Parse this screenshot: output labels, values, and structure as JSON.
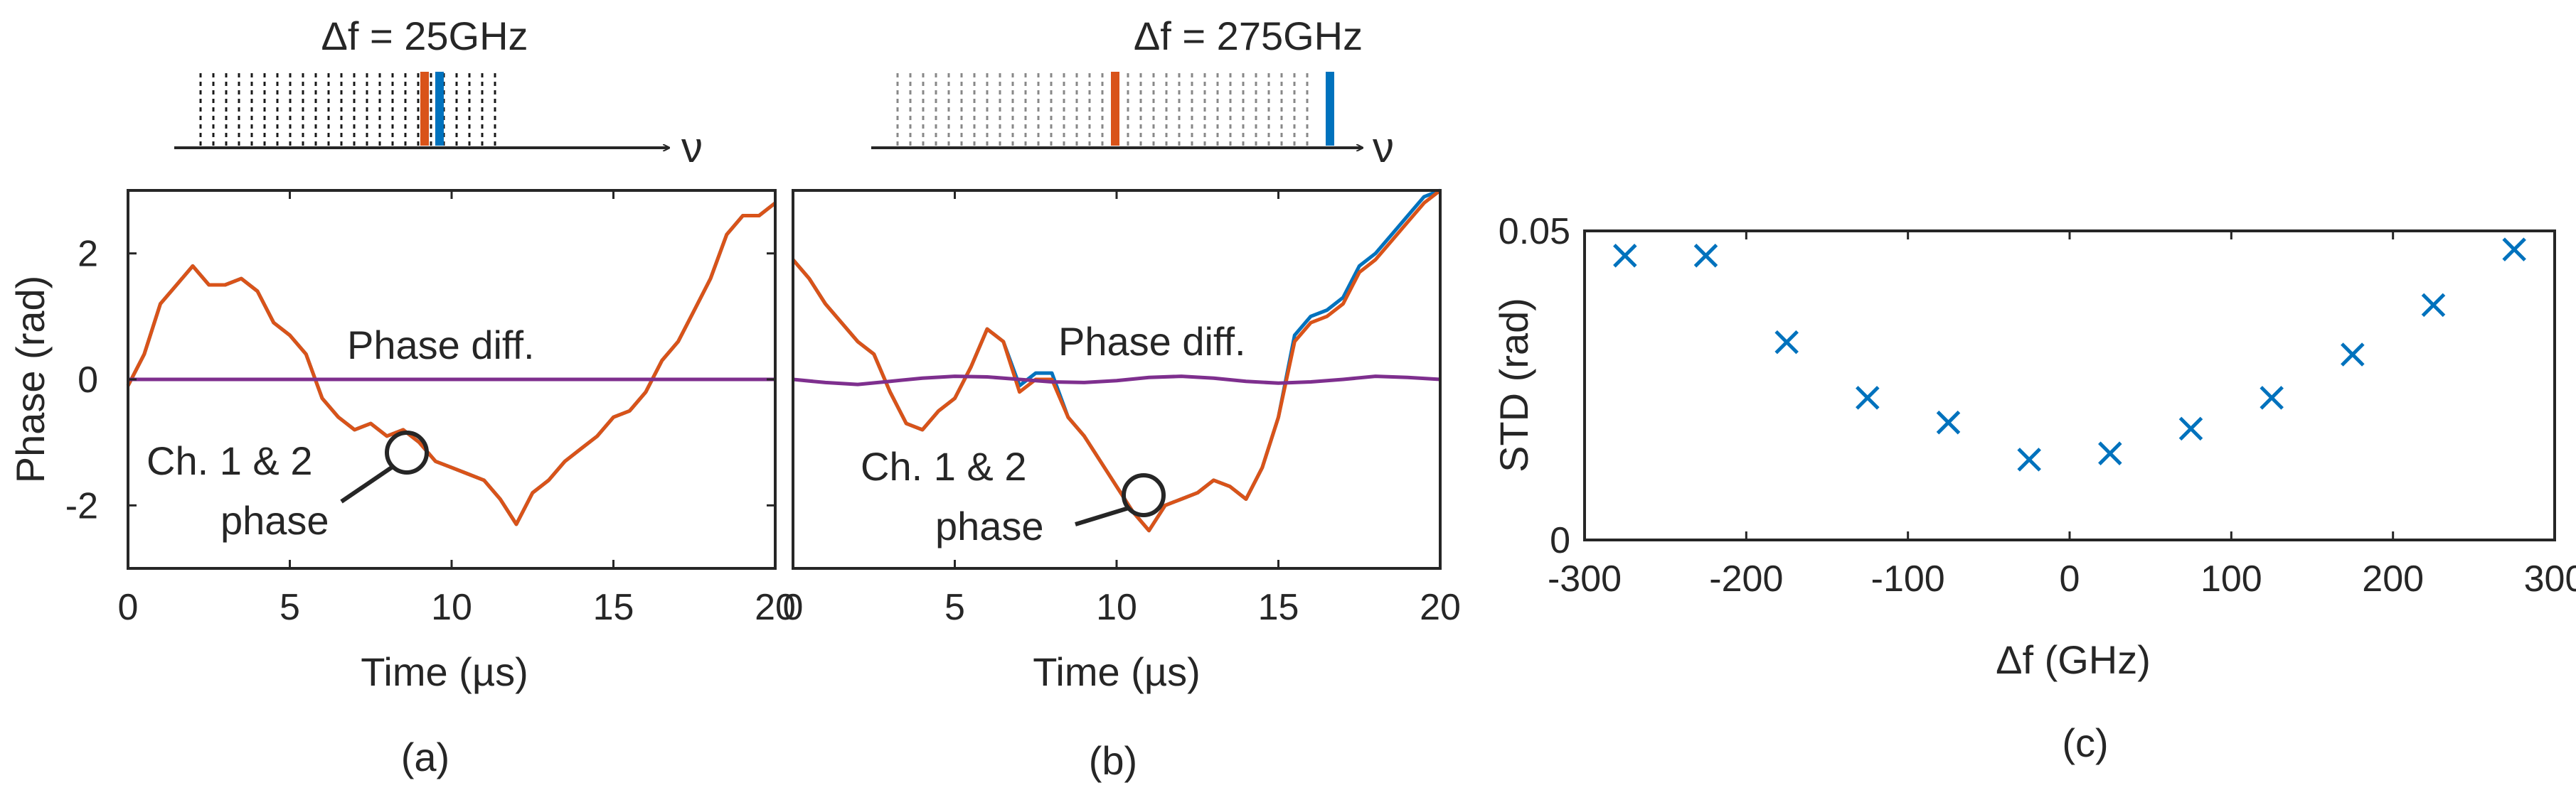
{
  "colors": {
    "orange": "#D95319",
    "blue": "#0072BD",
    "purple": "#7E2F8E",
    "axis": "#262626"
  },
  "chart_data": [
    {
      "id": "a",
      "type": "line",
      "panel_label": "(a)",
      "xlabel": "Time (µs)",
      "ylabel": "Phase (rad)",
      "xlim": [
        0,
        20
      ],
      "ylim": [
        -3,
        3
      ],
      "xticks": [
        0,
        5,
        10,
        15,
        20
      ],
      "xtick_labels": [
        "0",
        "5",
        "10",
        "15",
        "20"
      ],
      "yticks": [
        2,
        0,
        -2
      ],
      "ytick_labels": [
        "2",
        "0",
        "-2"
      ],
      "inset_title": "Δf = 25GHz",
      "inset_axis_symbol": "ν",
      "annotations": {
        "phase_diff": "Phase diff.",
        "channels_line1": "Ch. 1 & 2",
        "channels_line2": "phase"
      },
      "series": [
        {
          "name": "Ch. 1 phase",
          "color": "#0072BD",
          "x": [
            0,
            0.5,
            1,
            1.5,
            2,
            2.5,
            3,
            3.5,
            4,
            4.5,
            5,
            5.5,
            6,
            6.5,
            7,
            7.5,
            8,
            8.5,
            9,
            9.5,
            10,
            10.5,
            11,
            11.5,
            12,
            12.5,
            13,
            13.5,
            14,
            14.5,
            15,
            15.5,
            16,
            16.5,
            17,
            17.5,
            18,
            18.5,
            19,
            19.5,
            20
          ],
          "y": [
            -0.1,
            0.4,
            1.2,
            1.5,
            1.8,
            1.5,
            1.5,
            1.6,
            1.4,
            0.9,
            0.7,
            0.4,
            -0.3,
            -0.6,
            -0.8,
            -0.7,
            -0.9,
            -0.8,
            -1.0,
            -1.3,
            -1.4,
            -1.5,
            -1.6,
            -1.9,
            -2.3,
            -1.8,
            -1.6,
            -1.3,
            -1.1,
            -0.9,
            -0.6,
            -0.5,
            -0.2,
            0.3,
            0.6,
            1.1,
            1.6,
            2.3,
            2.6,
            2.6,
            2.8
          ]
        },
        {
          "name": "Ch. 2 phase",
          "color": "#D95319",
          "x": [
            0,
            0.5,
            1,
            1.5,
            2,
            2.5,
            3,
            3.5,
            4,
            4.5,
            5,
            5.5,
            6,
            6.5,
            7,
            7.5,
            8,
            8.5,
            9,
            9.5,
            10,
            10.5,
            11,
            11.5,
            12,
            12.5,
            13,
            13.5,
            14,
            14.5,
            15,
            15.5,
            16,
            16.5,
            17,
            17.5,
            18,
            18.5,
            19,
            19.5,
            20
          ],
          "y": [
            -0.1,
            0.4,
            1.2,
            1.5,
            1.8,
            1.5,
            1.5,
            1.6,
            1.4,
            0.9,
            0.7,
            0.4,
            -0.3,
            -0.6,
            -0.8,
            -0.7,
            -0.9,
            -0.8,
            -1.0,
            -1.3,
            -1.4,
            -1.5,
            -1.6,
            -1.9,
            -2.3,
            -1.8,
            -1.6,
            -1.3,
            -1.1,
            -0.9,
            -0.6,
            -0.5,
            -0.2,
            0.3,
            0.6,
            1.1,
            1.6,
            2.3,
            2.6,
            2.6,
            2.8
          ]
        },
        {
          "name": "Phase diff.",
          "color": "#7E2F8E",
          "x": [
            0,
            5,
            10,
            15,
            20
          ],
          "y": [
            0,
            0,
            0,
            0,
            0
          ]
        }
      ]
    },
    {
      "id": "b",
      "type": "line",
      "panel_label": "(b)",
      "xlabel": "Time (µs)",
      "ylabel": "",
      "xlim": [
        0,
        20
      ],
      "ylim": [
        -3,
        3
      ],
      "xticks": [
        0,
        5,
        10,
        15,
        20
      ],
      "xtick_labels": [
        "0",
        "5",
        "10",
        "15",
        "20"
      ],
      "inset_title": "Δf = 275GHz",
      "inset_axis_symbol": "ν",
      "annotations": {
        "phase_diff": "Phase diff.",
        "channels_line1": "Ch. 1 & 2",
        "channels_line2": "phase"
      },
      "series": [
        {
          "name": "Ch. 1 phase",
          "color": "#0072BD",
          "x": [
            0,
            0.5,
            1,
            1.5,
            2,
            2.5,
            3,
            3.5,
            4,
            4.5,
            5,
            5.5,
            6,
            6.5,
            7,
            7.5,
            8,
            8.5,
            9,
            9.5,
            10,
            10.5,
            11,
            11.5,
            12,
            12.5,
            13,
            13.5,
            14,
            14.5,
            15,
            15.5,
            16,
            16.5,
            17,
            17.5,
            18,
            18.5,
            19,
            19.5,
            20
          ],
          "y": [
            1.9,
            1.6,
            1.2,
            0.9,
            0.6,
            0.4,
            -0.2,
            -0.7,
            -0.8,
            -0.5,
            -0.3,
            0.2,
            0.8,
            0.6,
            -0.1,
            0.1,
            0.1,
            -0.6,
            -0.9,
            -1.3,
            -1.7,
            -2.1,
            -2.4,
            -2.0,
            -1.9,
            -1.8,
            -1.6,
            -1.7,
            -1.9,
            -1.4,
            -0.6,
            0.7,
            1.0,
            1.1,
            1.3,
            1.8,
            2.0,
            2.3,
            2.6,
            2.9,
            3.0
          ]
        },
        {
          "name": "Ch. 2 phase",
          "color": "#D95319",
          "x": [
            0,
            0.5,
            1,
            1.5,
            2,
            2.5,
            3,
            3.5,
            4,
            4.5,
            5,
            5.5,
            6,
            6.5,
            7,
            7.5,
            8,
            8.5,
            9,
            9.5,
            10,
            10.5,
            11,
            11.5,
            12,
            12.5,
            13,
            13.5,
            14,
            14.5,
            15,
            15.5,
            16,
            16.5,
            17,
            17.5,
            18,
            18.5,
            19,
            19.5,
            20
          ],
          "y": [
            1.9,
            1.6,
            1.2,
            0.9,
            0.6,
            0.4,
            -0.2,
            -0.7,
            -0.8,
            -0.5,
            -0.3,
            0.2,
            0.8,
            0.6,
            -0.2,
            0.0,
            0.0,
            -0.6,
            -0.9,
            -1.3,
            -1.7,
            -2.1,
            -2.4,
            -2.0,
            -1.9,
            -1.8,
            -1.6,
            -1.7,
            -1.9,
            -1.4,
            -0.6,
            0.6,
            0.9,
            1.0,
            1.2,
            1.7,
            1.9,
            2.2,
            2.5,
            2.8,
            3.0
          ]
        },
        {
          "name": "Phase diff.",
          "color": "#7E2F8E",
          "x": [
            0,
            1,
            2,
            3,
            4,
            5,
            6,
            7,
            8,
            9,
            10,
            11,
            12,
            13,
            14,
            15,
            16,
            17,
            18,
            19,
            20
          ],
          "y": [
            0,
            -0.05,
            -0.08,
            -0.03,
            0.02,
            0.05,
            0.04,
            0.0,
            -0.04,
            -0.05,
            -0.02,
            0.03,
            0.05,
            0.02,
            -0.03,
            -0.06,
            -0.04,
            0.0,
            0.05,
            0.03,
            0.0
          ]
        }
      ]
    },
    {
      "id": "c",
      "type": "scatter",
      "panel_label": "(c)",
      "xlabel": "Δf (GHz)",
      "ylabel": "STD (rad)",
      "xlim": [
        -300,
        300
      ],
      "ylim": [
        0,
        0.05
      ],
      "xticks": [
        -300,
        -200,
        -100,
        0,
        100,
        200,
        300
      ],
      "xtick_labels": [
        "-300",
        "-200",
        "-100",
        "0",
        "100",
        "200",
        "300"
      ],
      "yticks": [
        0,
        0.05
      ],
      "ytick_labels": [
        "0",
        "0.05"
      ],
      "marker": "x",
      "color": "#0072BD",
      "x": [
        -275,
        -225,
        -175,
        -125,
        -75,
        -25,
        25,
        75,
        125,
        175,
        225,
        275
      ],
      "y": [
        0.046,
        0.046,
        0.032,
        0.023,
        0.019,
        0.013,
        0.014,
        0.018,
        0.023,
        0.03,
        0.038,
        0.047
      ]
    }
  ]
}
